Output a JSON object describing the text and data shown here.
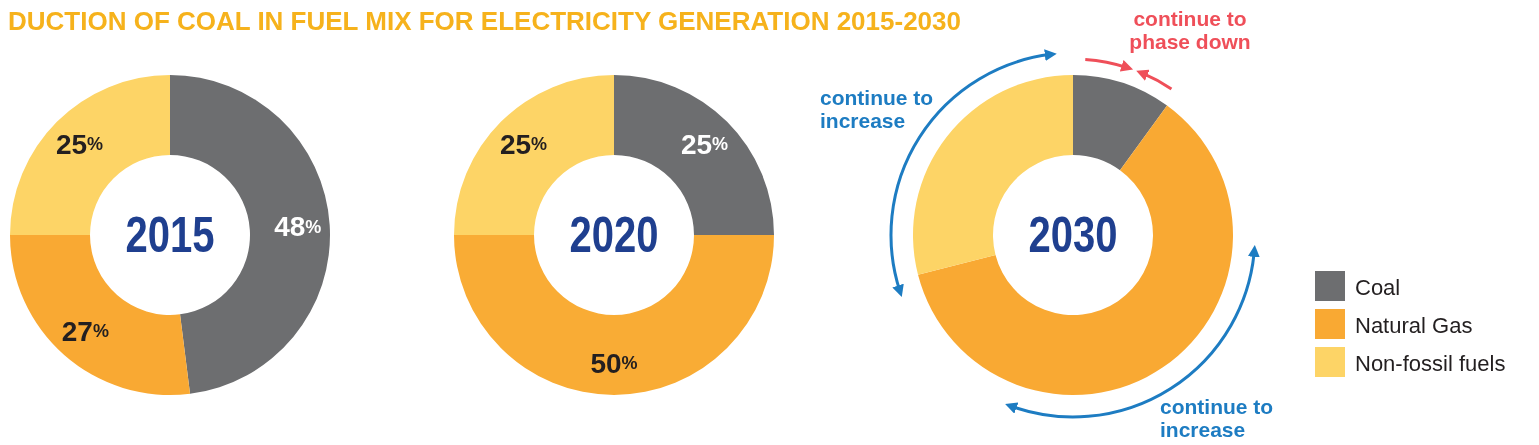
{
  "chart_data": [
    {
      "type": "donut",
      "title": "DUCTION OF COAL IN FUEL MIX FOR ELECTRICITY GENERATION 2015-2030",
      "annotations": [
        "2015"
      ],
      "categories": [
        null,
        null,
        null
      ],
      "values": [
        48,
        27,
        25
      ],
      "colors": [
        "#6d6e70",
        "#f9a933",
        "#fdd466"
      ],
      "value_labels": [
        "48%",
        "27%",
        "25%"
      ]
    },
    {
      "type": "donut",
      "annotations": [
        "2020"
      ],
      "categories": [
        null,
        null,
        null
      ],
      "values": [
        25,
        50,
        25
      ],
      "colors": [
        "#6d6e70",
        "#f9ac35",
        "#fdd466"
      ],
      "value_labels": [
        "25%",
        "50%",
        "25%"
      ]
    },
    {
      "type": "donut",
      "annotations": [
        "2030",
        "continue to\nincrease",
        "continue to\nphase down",
        "continue to\nincrease"
      ],
      "categories": [
        "Coal",
        "Natural Gas",
        "Non-fossil fuels"
      ],
      "values": [
        10,
        61,
        29
      ],
      "colors": [
        "#6d6e70",
        "#f9a933",
        "#fdd466"
      ],
      "legend": "right"
    }
  ]
}
